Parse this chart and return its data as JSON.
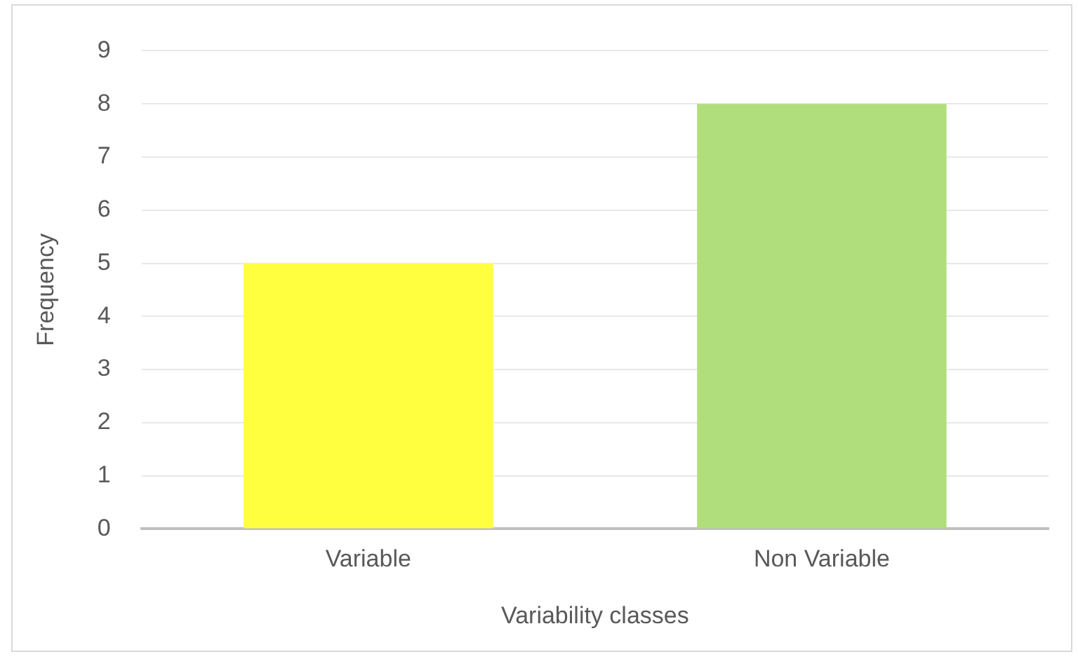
{
  "chart_data": {
    "type": "bar",
    "xlabel": "Variability classes",
    "ylabel": "Frequency",
    "categories": [
      "Variable",
      "Non Variable"
    ],
    "values": [
      5,
      8
    ],
    "colors": [
      "#ffff40",
      "#b0de7c"
    ],
    "ylim": [
      0,
      9
    ],
    "yticks": [
      0,
      1,
      2,
      3,
      4,
      5,
      6,
      7,
      8,
      9
    ],
    "grid": "y"
  }
}
